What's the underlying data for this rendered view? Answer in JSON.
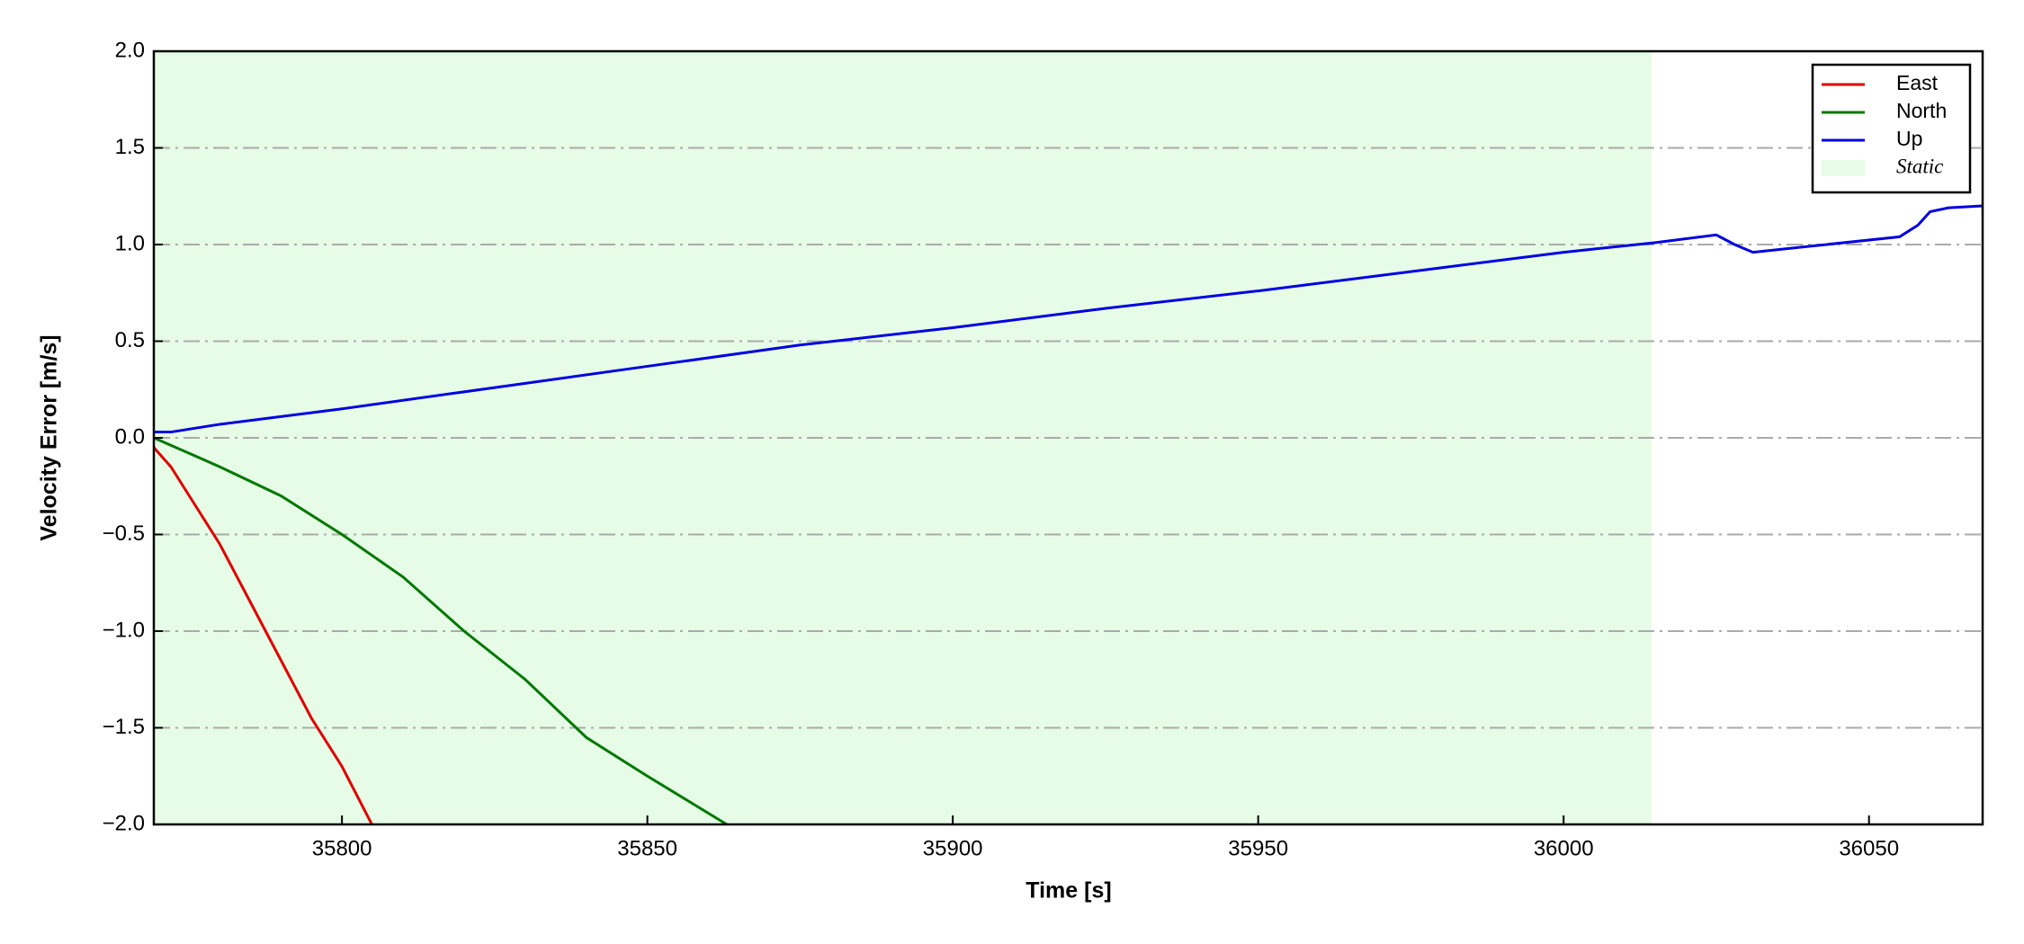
{
  "chart_data": {
    "type": "line",
    "xlabel": "Time [s]",
    "ylabel": "Velocity Error [m/s]",
    "xlim": [
      35769.2,
      36068.6
    ],
    "ylim": [
      -2.0,
      2.0
    ],
    "xticks": [
      35800,
      35850,
      35900,
      35950,
      36000,
      36050
    ],
    "yticks": [
      {
        "value": -2.0,
        "label": "−2.0"
      },
      {
        "value": -1.5,
        "label": "−1.5"
      },
      {
        "value": -1.0,
        "label": "−1.0"
      },
      {
        "value": -0.5,
        "label": "−0.5"
      },
      {
        "value": 0.0,
        "label": "0.0"
      },
      {
        "value": 0.5,
        "label": "0.5"
      },
      {
        "value": 1.0,
        "label": "1.0"
      },
      {
        "value": 1.5,
        "label": "1.5"
      },
      {
        "value": 2.0,
        "label": "2.0"
      }
    ],
    "grid": true,
    "legend": "upper right",
    "shaded": {
      "name": "Static",
      "color": "#e6fce6",
      "xrange": [
        35769.2,
        36014.4
      ]
    },
    "series": [
      {
        "name": "East",
        "color": "#e00000",
        "x": [
          35769.2,
          35772,
          35775,
          35780,
          35785,
          35790,
          35795,
          35800,
          35804.9
        ],
        "values": [
          -0.05,
          -0.15,
          -0.3,
          -0.55,
          -0.85,
          -1.15,
          -1.45,
          -1.7,
          -2.0
        ]
      },
      {
        "name": "North",
        "color": "#007800",
        "x": [
          35769.2,
          35775,
          35780,
          35790,
          35800,
          35810,
          35820,
          35830,
          35840,
          35850,
          35863
        ],
        "values": [
          0.0,
          -0.08,
          -0.15,
          -0.3,
          -0.5,
          -0.72,
          -1.0,
          -1.25,
          -1.55,
          -1.75,
          -2.0
        ]
      },
      {
        "name": "Up",
        "color": "#0000e0",
        "x": [
          35769.2,
          35772,
          35780,
          35800,
          35825,
          35850,
          35875,
          35900,
          35925,
          35950,
          35975,
          36000,
          36015,
          36025,
          36028,
          36031,
          36040,
          36055,
          36058,
          36060,
          36063,
          36068.6
        ],
        "values": [
          0.03,
          0.03,
          0.07,
          0.15,
          0.26,
          0.37,
          0.48,
          0.57,
          0.67,
          0.76,
          0.86,
          0.96,
          1.01,
          1.05,
          1.0,
          0.96,
          0.99,
          1.04,
          1.1,
          1.17,
          1.19,
          1.2
        ]
      }
    ]
  }
}
